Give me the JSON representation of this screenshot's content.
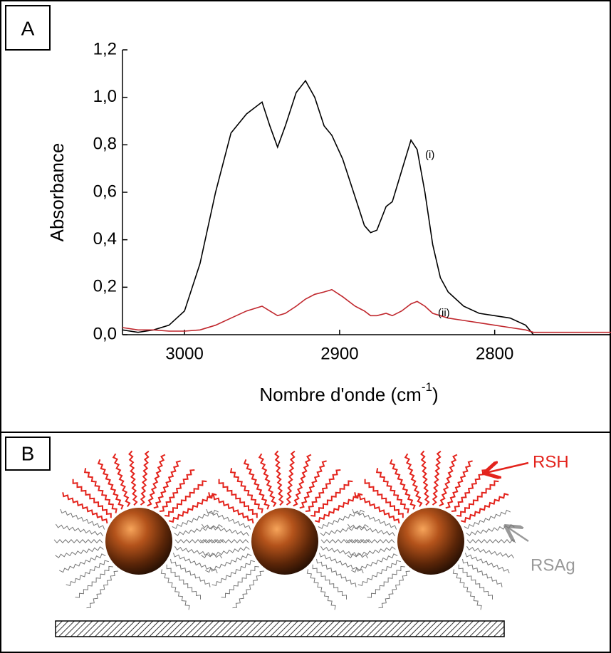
{
  "panel_labels": [
    "A",
    "B"
  ],
  "chart_data": {
    "type": "line",
    "ylabel": "Absorbance",
    "xlabel": "Nombre d'onde (cm",
    "xlabel_sup": "-1",
    "xlabel_end": ")",
    "x": [
      3040,
      3030,
      3020,
      3010,
      3000,
      2990,
      2980,
      2970,
      2960,
      2950,
      2945,
      2940,
      2935,
      2928,
      2922,
      2916,
      2910,
      2905,
      2898,
      2890,
      2884,
      2880,
      2876,
      2870,
      2866,
      2860,
      2854,
      2850,
      2845,
      2840,
      2835,
      2830,
      2820,
      2810,
      2800,
      2790,
      2780,
      2775,
      2770,
      2760,
      2750,
      2740,
      2725
    ],
    "series": [
      {
        "name": "(i)",
        "color": "#000000",
        "values": [
          0.02,
          0.01,
          0.02,
          0.04,
          0.1,
          0.3,
          0.6,
          0.85,
          0.93,
          0.98,
          0.88,
          0.79,
          0.88,
          1.02,
          1.07,
          1.0,
          0.88,
          0.84,
          0.74,
          0.58,
          0.46,
          0.43,
          0.44,
          0.54,
          0.56,
          0.69,
          0.82,
          0.78,
          0.6,
          0.38,
          0.24,
          0.18,
          0.12,
          0.09,
          0.08,
          0.07,
          0.04,
          0.0,
          0.0,
          0.0,
          0.0,
          0.0,
          0.0
        ]
      },
      {
        "name": "(ii)",
        "color": "#c0272d",
        "values": [
          0.03,
          0.02,
          0.02,
          0.015,
          0.015,
          0.02,
          0.04,
          0.07,
          0.1,
          0.12,
          0.1,
          0.08,
          0.09,
          0.12,
          0.15,
          0.17,
          0.18,
          0.19,
          0.16,
          0.12,
          0.1,
          0.08,
          0.08,
          0.09,
          0.08,
          0.1,
          0.13,
          0.14,
          0.12,
          0.09,
          0.08,
          0.07,
          0.06,
          0.05,
          0.04,
          0.03,
          0.02,
          0.01,
          0.01,
          0.01,
          0.01,
          0.01,
          0.01
        ]
      }
    ],
    "xlim": [
      3040,
      2725
    ],
    "xticks": [
      3000,
      2900,
      2800
    ],
    "ylim": [
      0,
      1.2
    ],
    "yticks": [
      {
        "value": 0,
        "label": "0,0"
      },
      {
        "value": 0.2,
        "label": "0,2"
      },
      {
        "value": 0.4,
        "label": "0,4"
      },
      {
        "value": 0.6,
        "label": "0,6"
      },
      {
        "value": 0.8,
        "label": "0,8"
      },
      {
        "value": 1.0,
        "label": "1,0"
      },
      {
        "value": 1.2,
        "label": "1,2"
      }
    ],
    "grid": false
  },
  "diagram": {
    "labels": [
      "RSH",
      "RSAg"
    ]
  }
}
